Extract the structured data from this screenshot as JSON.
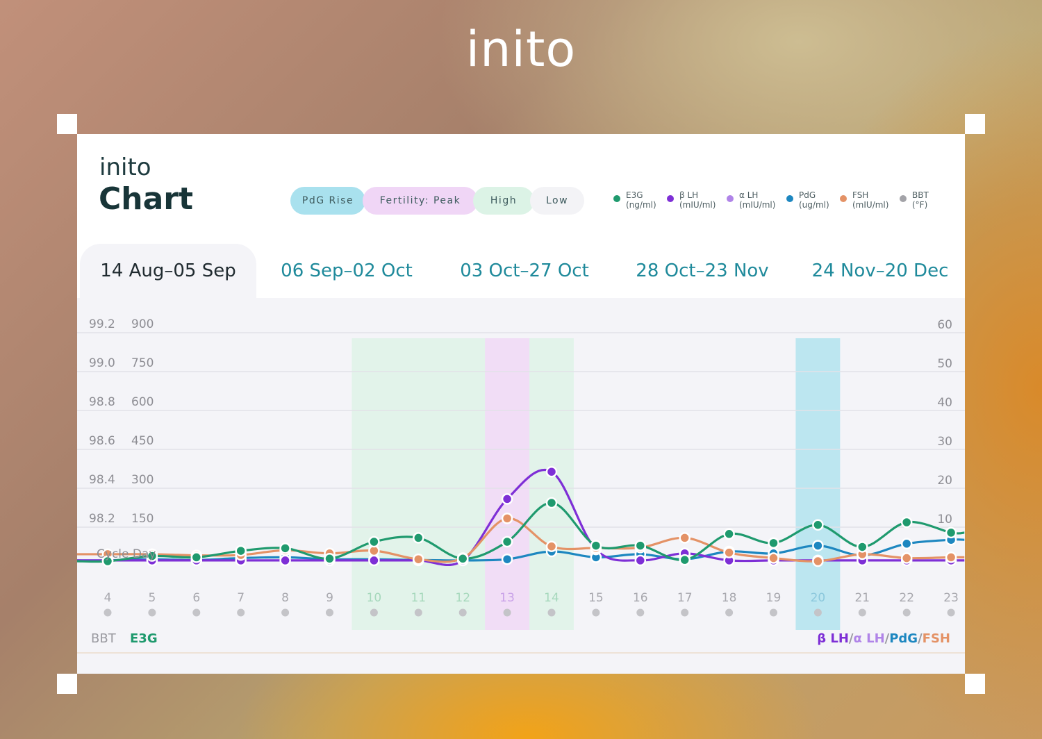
{
  "brand": "inito",
  "card": {
    "brand": "inito",
    "title": "Chart"
  },
  "pills": [
    {
      "label": "PdG Rise",
      "bg": "#a9e1ee"
    },
    {
      "label": "Fertility: Peak",
      "bg": "#f0d6f6"
    },
    {
      "label": "High",
      "bg": "#dcf3e6"
    },
    {
      "label": "Low",
      "bg": "#f3f3f6"
    }
  ],
  "legend": [
    {
      "name": "E3G",
      "unit": "(ng/ml)",
      "color": "#1f9a6e"
    },
    {
      "name": "β LH",
      "unit": "(mIU/ml)",
      "color": "#7e2fd6"
    },
    {
      "name": "α LH",
      "unit": "(mIU/ml)",
      "color": "#b084e8"
    },
    {
      "name": "PdG",
      "unit": "(ug/ml)",
      "color": "#1d87c0"
    },
    {
      "name": "FSH",
      "unit": "(mIU/ml)",
      "color": "#e49266"
    },
    {
      "name": "BBT",
      "unit": "(°F)",
      "color": "#a3a3a8"
    }
  ],
  "tabs": [
    "14 Aug–05 Sep",
    "06 Sep–02 Oct",
    "03 Oct–27 Oct",
    "28 Oct–23 Nov",
    "24 Nov–20 Dec"
  ],
  "chart_data": {
    "type": "line",
    "x_label": "Cycle Day",
    "x": [
      4,
      5,
      6,
      7,
      8,
      9,
      10,
      11,
      12,
      13,
      14,
      15,
      16,
      17,
      18,
      19,
      20,
      21,
      22,
      23
    ],
    "left_axis_bbt": {
      "ticks": [
        "99.2",
        "99.0",
        "98.8",
        "98.6",
        "98.4",
        "98.2"
      ],
      "range": [
        98.0,
        99.2
      ]
    },
    "left_axis_e3g": {
      "ticks": [
        "900",
        "750",
        "600",
        "450",
        "300",
        "150"
      ],
      "range": [
        0,
        900
      ]
    },
    "right_axis": {
      "ticks": [
        "60",
        "50",
        "40",
        "30",
        "20",
        "10"
      ],
      "range": [
        0,
        60
      ]
    },
    "bottom_left_labels": [
      "BBT",
      "E3G"
    ],
    "bottom_right_labels": [
      "β LH",
      "α LH",
      "PdG",
      "FSH"
    ],
    "highlight_bands": [
      {
        "type": "High",
        "days": [
          10,
          12
        ],
        "color": "#dcf3e6"
      },
      {
        "type": "Fertility: Peak",
        "days": [
          13,
          13
        ],
        "color": "#f0d6f6"
      },
      {
        "type": "High",
        "days": [
          14,
          14
        ],
        "color": "#dcf3e6"
      },
      {
        "type": "PdG Rise",
        "days": [
          20,
          20
        ],
        "color": "#a9e1ee"
      }
    ],
    "series": [
      {
        "name": "E3G",
        "axis": "left",
        "color": "#1f9a6e",
        "values": [
          0,
          20,
          15,
          40,
          50,
          10,
          75,
          90,
          10,
          75,
          225,
          60,
          60,
          5,
          105,
          70,
          140,
          55,
          150,
          110
        ]
      },
      {
        "name": "β LH",
        "axis": "right",
        "color": "#7e2fd6",
        "values": [
          0.2,
          0.2,
          0.2,
          0.2,
          0.2,
          0.2,
          0.2,
          0.2,
          0.2,
          16,
          23,
          3,
          0.2,
          2,
          0.2,
          0.2,
          0.2,
          0.2,
          0.2,
          0.2
        ]
      },
      {
        "name": "PdG",
        "axis": "right",
        "color": "#1d87c0",
        "values": [
          0.2,
          0.5,
          0.3,
          0.8,
          1,
          0.5,
          0.5,
          0.3,
          0.2,
          0.5,
          2.5,
          1,
          1.8,
          0.5,
          2.5,
          2,
          4,
          1.5,
          4.5,
          5.5
        ]
      },
      {
        "name": "FSH",
        "axis": "right",
        "color": "#e49266",
        "values": [
          1.8,
          1.8,
          1.5,
          1.6,
          2.8,
          2,
          2.7,
          0.5,
          0.8,
          11,
          3.8,
          3.4,
          3.5,
          6,
          2.2,
          0.8,
          0,
          1.8,
          0.8,
          1
        ]
      }
    ]
  }
}
